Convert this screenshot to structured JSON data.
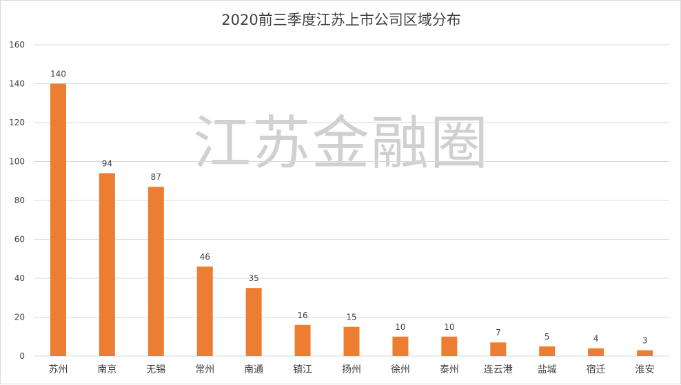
{
  "chart_data": {
    "type": "bar",
    "title": "2020前三季度江苏上市公司区域分布",
    "watermark": "江苏金融圈",
    "categories": [
      "苏州",
      "南京",
      "无锡",
      "常州",
      "南通",
      "镇江",
      "扬州",
      "徐州",
      "泰州",
      "连云港",
      "盐城",
      "宿迁",
      "淮安"
    ],
    "values": [
      140,
      94,
      87,
      46,
      35,
      16,
      15,
      10,
      10,
      7,
      5,
      4,
      3
    ],
    "data_labels": true,
    "xlabel": "",
    "ylabel": "",
    "ylim": [
      0,
      160
    ],
    "yticks": [
      0,
      20,
      40,
      60,
      80,
      100,
      120,
      140,
      160
    ],
    "grid": "horizontal",
    "legend": "none",
    "bar_color": "#ed7d31",
    "grid_color": "#d9d9d9"
  }
}
